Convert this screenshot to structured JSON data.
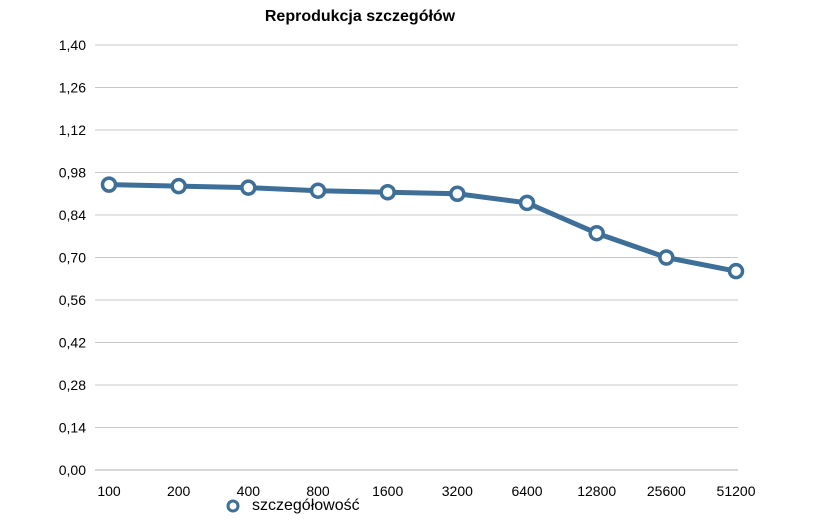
{
  "chart_data": {
    "type": "line",
    "title": "Reprodukcja szczegółów",
    "xlabel": "",
    "ylabel": "",
    "categories": [
      "100",
      "200",
      "400",
      "800",
      "1600",
      "3200",
      "6400",
      "12800",
      "25600",
      "51200"
    ],
    "series": [
      {
        "name": "szczegółowość",
        "values": [
          0.94,
          0.935,
          0.93,
          0.92,
          0.915,
          0.91,
          0.88,
          0.78,
          0.7,
          0.655
        ]
      }
    ],
    "ylim": [
      0,
      1.4
    ],
    "yticks": [
      "0,00",
      "0,14",
      "0,28",
      "0,42",
      "0,56",
      "0,70",
      "0,84",
      "0,98",
      "1,12",
      "1,26",
      "1,40"
    ],
    "grid": true,
    "legend_position": "bottom-left",
    "colors": {
      "series_line": "#3e6f98",
      "marker_fill": "#ffffff",
      "grid": "#c8c8c8",
      "axis_text": "#000000"
    }
  }
}
